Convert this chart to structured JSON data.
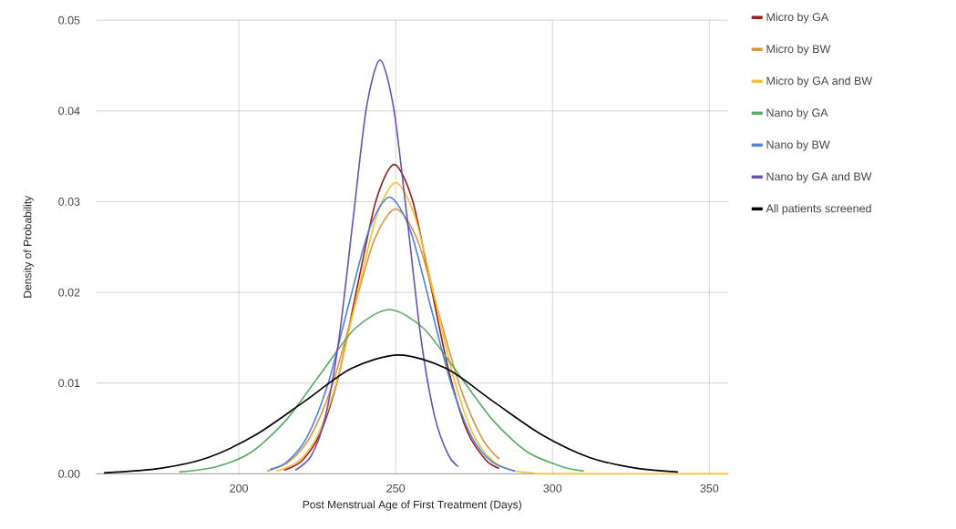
{
  "chart_data": {
    "type": "line",
    "xlabel": "Post Menstrual Age of First Treatment (Days)",
    "ylabel": "Density of Probability",
    "xlim": [
      154.5,
      356
    ],
    "xticks": [
      200,
      250,
      300,
      350
    ],
    "ylim": [
      0,
      0.05
    ],
    "yticks": [
      {
        "value": 0,
        "label": "0.00"
      },
      {
        "value": 0.01,
        "label": "0.01"
      },
      {
        "value": 0.02,
        "label": "0.02"
      },
      {
        "value": 0.03,
        "label": "0.03"
      },
      {
        "value": 0.04,
        "label": "0.04"
      },
      {
        "value": 0.05,
        "label": "0.05"
      }
    ],
    "grid": true,
    "legend": "right",
    "marker": "none",
    "line_style": "solid",
    "series": [
      {
        "name": "Micro by GA",
        "color": "#9a1b1b",
        "x": [
          214.4,
          220.3,
          226.1,
          232.0,
          237.8,
          243.7,
          249.5,
          255.4,
          261.2,
          267.1,
          272.9,
          278.8,
          283
        ],
        "values": [
          0.0004,
          0.0015,
          0.0046,
          0.0111,
          0.0207,
          0.0301,
          0.0341,
          0.0301,
          0.0207,
          0.0111,
          0.0046,
          0.0015,
          0.0006
        ]
      },
      {
        "name": "Micro by BW",
        "color": "#e0903f",
        "x": [
          209,
          215.8,
          222.6,
          229.5,
          236.3,
          243.2,
          250,
          256.9,
          263.7,
          270.6,
          277.4,
          283
        ],
        "values": [
          0.0003,
          0.0013,
          0.004,
          0.0095,
          0.0177,
          0.0258,
          0.0292,
          0.0258,
          0.0177,
          0.0095,
          0.004,
          0.0016
        ]
      },
      {
        "name": "Micro by GA and BW",
        "color": "#f4c132",
        "x": [
          212,
          219,
          225.2,
          231.4,
          237.6,
          243.8,
          250,
          256.2,
          262.4,
          268.6,
          274.8,
          281,
          287.2,
          293.4,
          300,
          356
        ],
        "values": [
          0.0003,
          0.0014,
          0.0043,
          0.0104,
          0.0195,
          0.0283,
          0.0321,
          0.0283,
          0.0195,
          0.0104,
          0.0043,
          0.0014,
          0.0004,
          0.0001,
          0,
          0
        ]
      },
      {
        "name": "Nano by GA",
        "color": "#55ad5e",
        "x": [
          181,
          193,
          204,
          215,
          226,
          237,
          248,
          259,
          270,
          281,
          292,
          303,
          310
        ],
        "values": [
          0.0002,
          0.0008,
          0.0024,
          0.0059,
          0.011,
          0.016,
          0.0181,
          0.016,
          0.011,
          0.0059,
          0.0024,
          0.0008,
          0.0003
        ]
      },
      {
        "name": "Nano by BW",
        "color": "#4a82dc",
        "x": [
          210,
          215.3,
          221.8,
          228.4,
          234.9,
          241.5,
          248,
          254.6,
          261.1,
          267.7,
          274.2,
          280.8,
          288
        ],
        "values": [
          0.0005,
          0.0013,
          0.0041,
          0.0099,
          0.0185,
          0.0269,
          0.0305,
          0.0269,
          0.0185,
          0.0099,
          0.0041,
          0.0013,
          0.0003
        ]
      },
      {
        "name": "Nano by GA and BW",
        "color": "#6a4fb0",
        "x": [
          218,
          223.1,
          227.5,
          231.9,
          236.3,
          240.6,
          245,
          249.4,
          253.8,
          258.1,
          262.5,
          266.9,
          270
        ],
        "values": [
          0.0004,
          0.002,
          0.0062,
          0.0148,
          0.0277,
          0.0402,
          0.0456,
          0.0402,
          0.0277,
          0.0148,
          0.0062,
          0.002,
          0.0008
        ]
      },
      {
        "name": "All patients screened",
        "color": "#000000",
        "x": [
          157,
          175,
          190.2,
          205.4,
          220.6,
          235.8,
          251,
          266.2,
          281.4,
          296.6,
          311.8,
          327,
          340
        ],
        "values": [
          0.0001,
          0.0006,
          0.0018,
          0.0043,
          0.0079,
          0.0116,
          0.0131,
          0.0116,
          0.0079,
          0.0043,
          0.0018,
          0.0006,
          0.0002
        ]
      }
    ]
  }
}
